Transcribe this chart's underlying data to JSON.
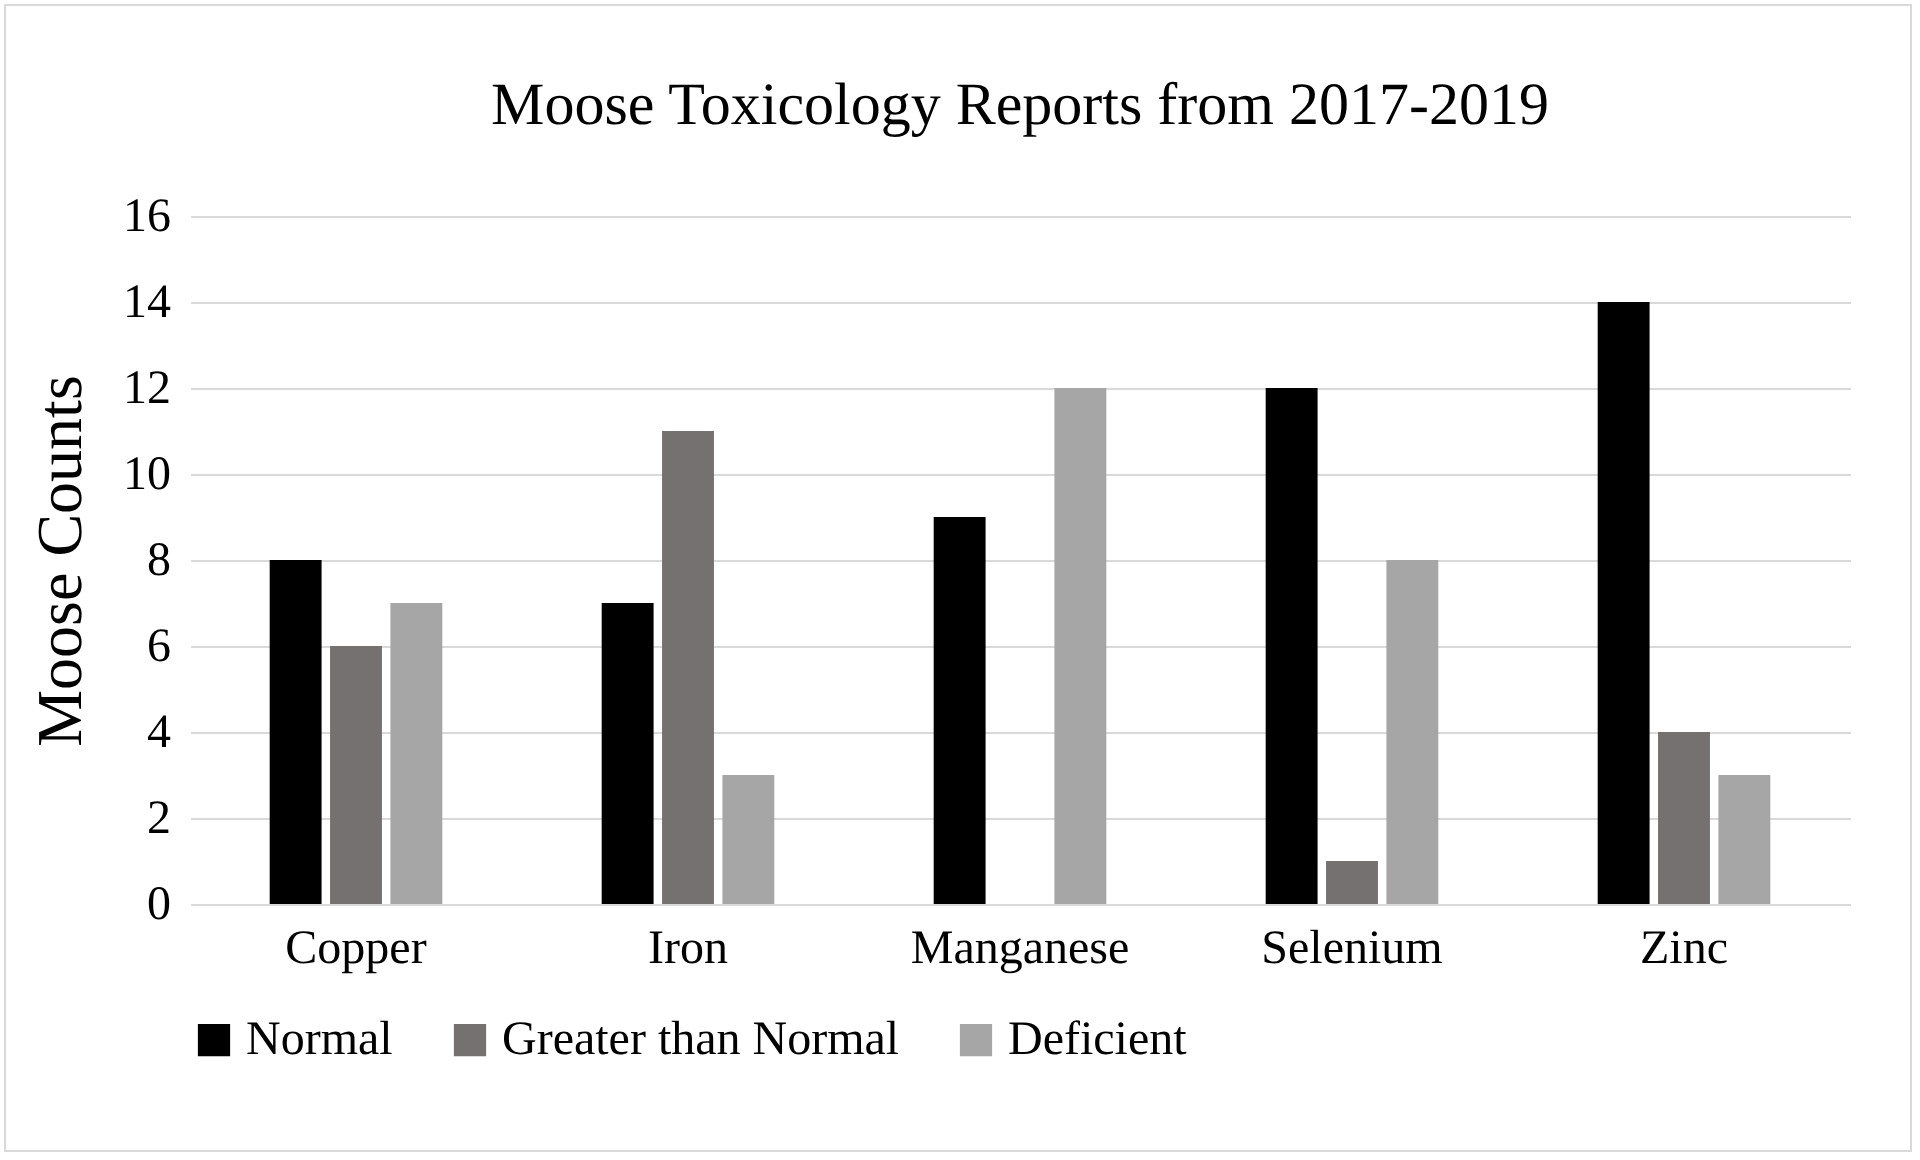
{
  "chart_data": {
    "type": "bar",
    "title": "Moose Toxicology Reports from 2017-2019",
    "ylabel": "Moose Counts",
    "categories": [
      "Copper",
      "Iron",
      "Manganese",
      "Selenium",
      "Zinc"
    ],
    "series": [
      {
        "name": "Normal",
        "color": "#000000",
        "values": [
          8,
          7,
          9,
          12,
          14
        ]
      },
      {
        "name": "Greater than Normal",
        "color": "#767171",
        "values": [
          6,
          11,
          0,
          1,
          4
        ]
      },
      {
        "name": "Deficient",
        "color": "#a6a6a6",
        "values": [
          7,
          3,
          12,
          8,
          3
        ]
      }
    ],
    "ylim": [
      0,
      16
    ],
    "yticks": [
      0,
      2,
      4,
      6,
      8,
      10,
      12,
      14,
      16
    ],
    "grid": "y",
    "legend": "bottom"
  }
}
